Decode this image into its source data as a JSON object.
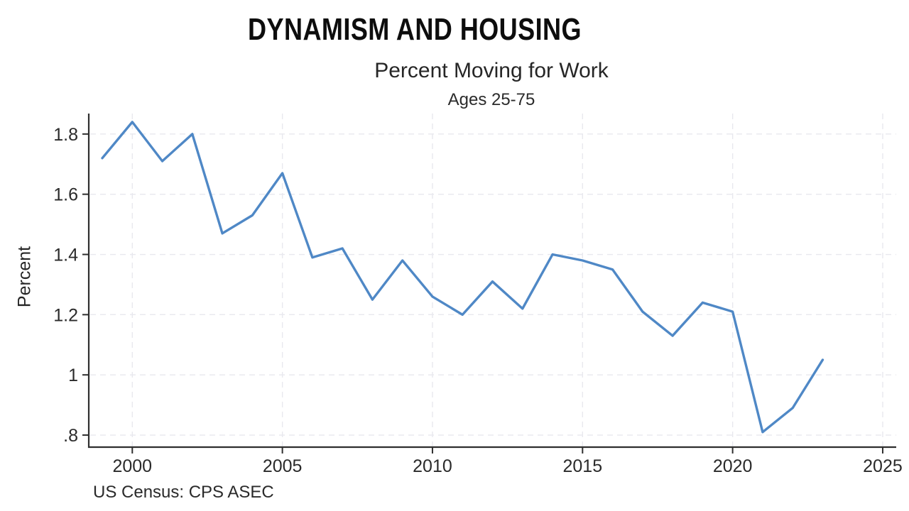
{
  "slide": {
    "title": "DYNAMISM AND HOUSING",
    "background_color": "#ffffff"
  },
  "chart_data": {
    "type": "line",
    "title": "Percent Moving for Work",
    "subtitle": "Ages 25-75",
    "ylabel": "Percent",
    "xlabel": "",
    "source_note": "US Census: CPS ASEC",
    "series": [
      {
        "name": "Percent moving for work, ages 25-75",
        "x": [
          1999,
          2000,
          2001,
          2002,
          2003,
          2004,
          2005,
          2006,
          2007,
          2008,
          2009,
          2010,
          2011,
          2012,
          2013,
          2014,
          2015,
          2016,
          2017,
          2018,
          2019,
          2020,
          2021,
          2022,
          2023
        ],
        "values": [
          1.72,
          1.84,
          1.71,
          1.8,
          1.47,
          1.53,
          1.67,
          1.39,
          1.42,
          1.25,
          1.38,
          1.26,
          1.2,
          1.31,
          1.22,
          1.4,
          1.38,
          1.35,
          1.21,
          1.13,
          1.24,
          1.21,
          0.81,
          0.89,
          1.05
        ]
      }
    ],
    "x_ticks": [
      2000,
      2005,
      2010,
      2015,
      2020,
      2025
    ],
    "y_ticks": [
      1.8,
      1.6,
      1.4,
      1.2,
      1,
      0.8
    ],
    "y_tick_labels": [
      "1.8",
      "1.6",
      "1.4",
      "1.2",
      "1",
      ".8"
    ],
    "xlim": [
      1998.55,
      2025.45
    ],
    "ylim": [
      0.76,
      1.868
    ],
    "grid": true,
    "legend": "none",
    "line_color": "#4f88c6",
    "axis_color": "#2f2f2f",
    "grid_color": "#e8e8ee",
    "text_color": "#262626"
  }
}
